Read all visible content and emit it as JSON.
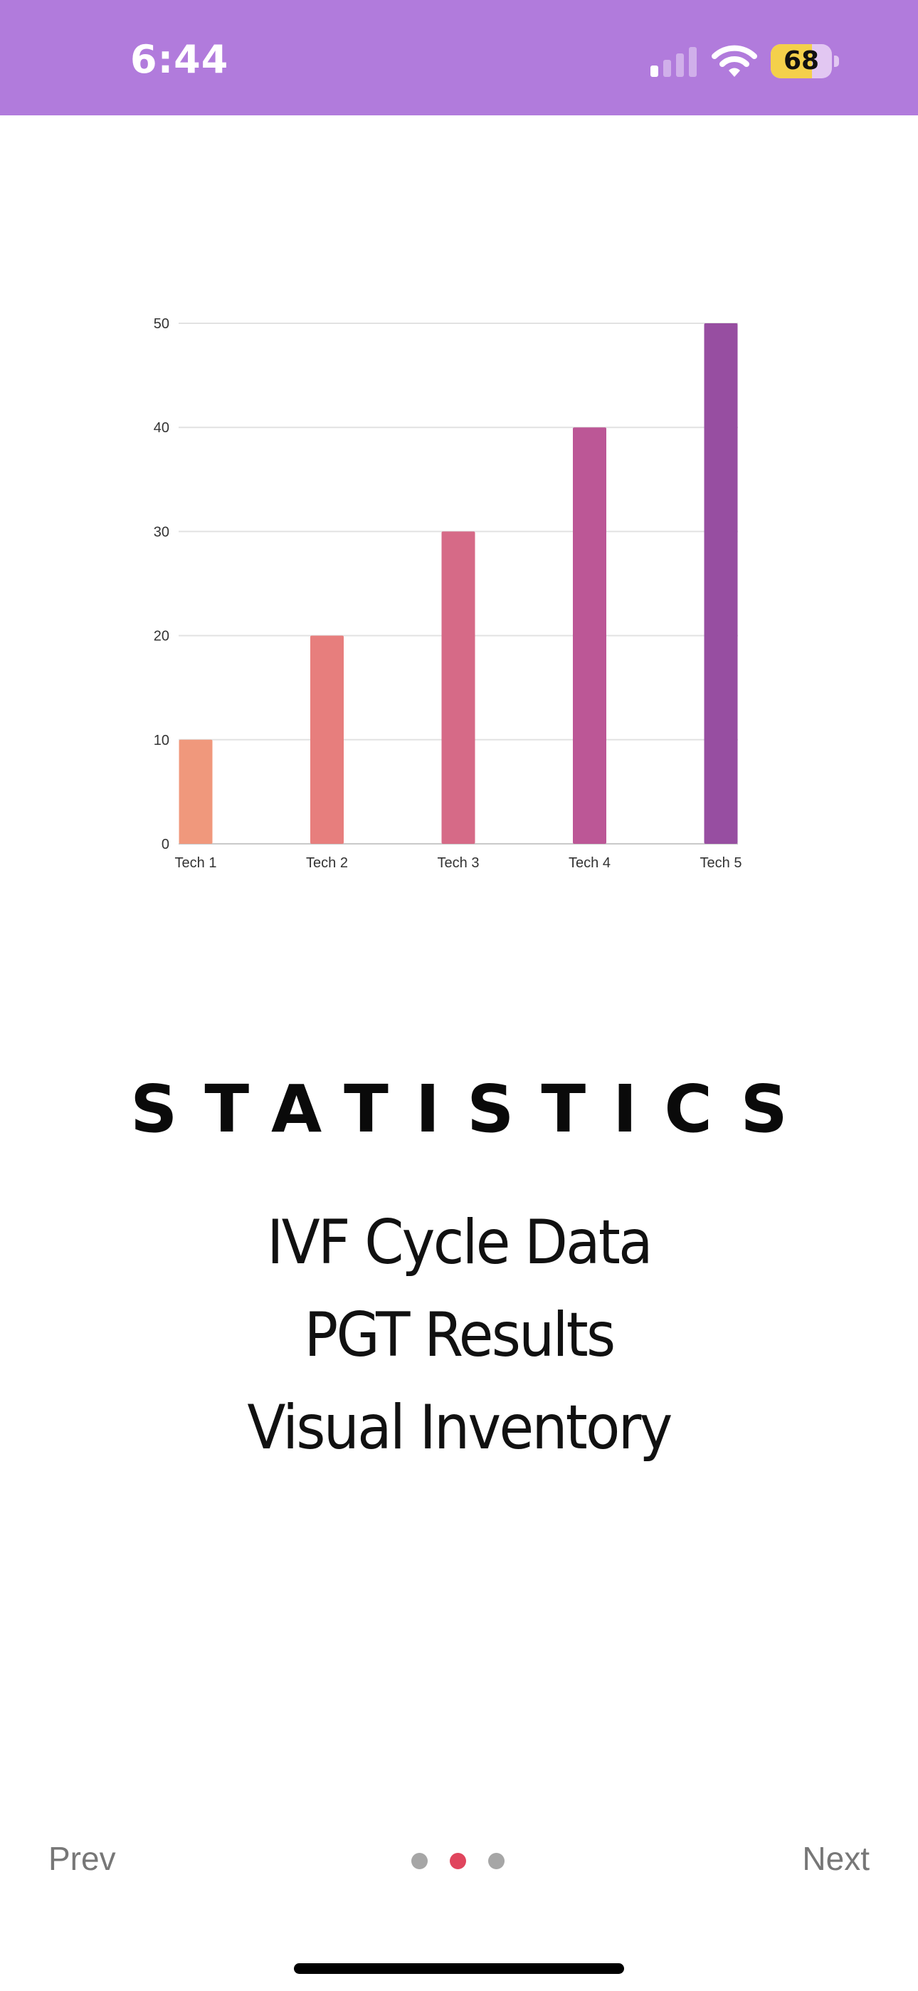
{
  "status_bar": {
    "time": "6:44",
    "battery_level": "68",
    "battery_fraction": 0.68,
    "signal_bars_active": 1,
    "background_color": "#b17bdc"
  },
  "chart_data": {
    "type": "bar",
    "categories": [
      "Tech 1",
      "Tech 2",
      "Tech 3",
      "Tech 4",
      "Tech 5"
    ],
    "values": [
      10,
      20,
      30,
      40,
      50
    ],
    "colors": [
      "#f0987c",
      "#e77e7d",
      "#d66a87",
      "#bc5796",
      "#974ea1"
    ],
    "yticks": [
      0,
      10,
      20,
      30,
      40,
      50
    ],
    "ylim": [
      0,
      50
    ],
    "grid": true,
    "title": "",
    "xlabel": "",
    "ylabel": ""
  },
  "main": {
    "title": "STATISTICS",
    "features": [
      "IVF Cycle Data",
      "PGT Results",
      "Visual Inventory"
    ]
  },
  "nav": {
    "prev_label": "Prev",
    "next_label": "Next",
    "page_count": 3,
    "active_page": 2,
    "dot_color": "#a6a6a6",
    "active_dot_color": "#e0455d"
  }
}
